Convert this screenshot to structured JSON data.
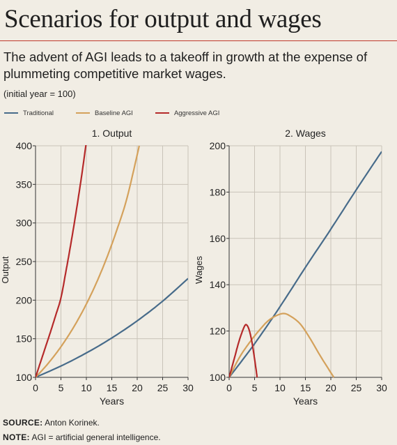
{
  "title": "Scenarios for output and wages",
  "subtitle": "The advent of AGI leads to a takeoff in growth at the expense of plummeting competitive market wages.",
  "unit_note": "(initial year = 100)",
  "colors": {
    "traditional": "#476b8a",
    "baseline": "#d4a15b",
    "aggressive": "#b52a2a",
    "grid": "#c9c3b8",
    "plot_bg": "#f1ede4"
  },
  "legend": [
    {
      "name": "Traditional",
      "color_key": "traditional"
    },
    {
      "name": "Baseline AGI",
      "color_key": "baseline"
    },
    {
      "name": "Aggressive AGI",
      "color_key": "aggressive"
    }
  ],
  "chart_data": [
    {
      "type": "line",
      "title": "1. Output",
      "xlabel": "Years",
      "ylabel": "Output",
      "xlim": [
        0,
        30
      ],
      "ylim": [
        100,
        400
      ],
      "xticks": [
        0,
        5,
        10,
        15,
        20,
        25,
        30
      ],
      "yticks": [
        100,
        150,
        200,
        250,
        300,
        350,
        400
      ],
      "grid": true,
      "series": [
        {
          "name": "Traditional",
          "color_key": "traditional",
          "x": [
            0,
            5,
            10,
            15,
            20,
            25,
            30
          ],
          "y": [
            100,
            114.7,
            131.6,
            151,
            173.2,
            198.7,
            228
          ]
        },
        {
          "name": "Baseline AGI",
          "color_key": "baseline",
          "x": [
            0,
            2,
            4,
            6,
            8,
            10,
            12,
            14,
            16,
            18,
            20.4
          ],
          "y": [
            100,
            114.3,
            130.6,
            149.3,
            170.6,
            195,
            222.8,
            254.6,
            291,
            332.5,
            400
          ]
        },
        {
          "name": "Aggressive AGI",
          "color_key": "aggressive",
          "x": [
            0,
            1,
            2,
            3,
            4,
            5,
            6,
            7,
            8,
            9,
            10
          ],
          "y": [
            100,
            120,
            140,
            160,
            181,
            203,
            238,
            275,
            315,
            358,
            405
          ]
        }
      ]
    },
    {
      "type": "line",
      "title": "2. Wages",
      "xlabel": "Years",
      "ylabel": "Wages",
      "xlim": [
        0,
        30
      ],
      "ylim": [
        100,
        200
      ],
      "xticks": [
        0,
        5,
        10,
        15,
        20,
        25,
        30
      ],
      "yticks": [
        100,
        120,
        140,
        160,
        180,
        200
      ],
      "grid": true,
      "series": [
        {
          "name": "Traditional",
          "color_key": "traditional",
          "x": [
            0,
            5,
            10,
            15,
            20,
            25,
            30
          ],
          "y": [
            100,
            114.5,
            130.5,
            147.5,
            164,
            181,
            197.5
          ]
        },
        {
          "name": "Baseline AGI",
          "color_key": "baseline",
          "x": [
            0,
            2,
            4,
            6,
            8,
            10.4,
            12,
            14,
            16,
            18,
            20.6
          ],
          "y": [
            100,
            108.5,
            115,
            120.5,
            125,
            127.5,
            126.5,
            123,
            116.5,
            109,
            100
          ]
        },
        {
          "name": "Aggressive AGI",
          "color_key": "aggressive",
          "x": [
            0,
            1,
            2,
            3,
            3.5,
            4,
            4.5,
            5,
            5.5
          ],
          "y": [
            100,
            108,
            116,
            122,
            122.5,
            120,
            115,
            108,
            100
          ]
        }
      ]
    }
  ],
  "footer": {
    "source_label": "SOURCE:",
    "source_text": " Anton Korinek.",
    "note_label": "NOTE:",
    "note_text": " AGI = artificial general intelligence."
  }
}
